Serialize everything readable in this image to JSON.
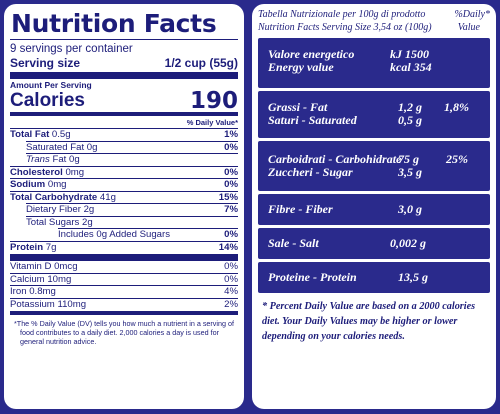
{
  "us": {
    "title": "Nutrition Facts",
    "servings": "9 servings per container",
    "serving_size_label": "Serving size",
    "serving_size_value": "1/2 cup (55g)",
    "amount_per_serving": "Amount Per Serving",
    "calories_label": "Calories",
    "calories_value": "190",
    "dv_header": "% Daily Value*",
    "rows": [
      {
        "label_bold": "Total Fat",
        "label": " 0.5g",
        "pct": "1%"
      },
      {
        "label_bold": "",
        "label": "Saturated Fat 0g",
        "pct": "0%"
      },
      {
        "label_italic": "Trans",
        "label": " Fat 0g",
        "pct": ""
      },
      {
        "label_bold": "Cholesterol",
        "label": " 0mg",
        "pct": "0%"
      },
      {
        "label_bold": "Sodium",
        "label": " 0mg",
        "pct": "0%"
      },
      {
        "label_bold": "Total Carbohydrate",
        "label": " 41g",
        "pct": "15%"
      },
      {
        "label_bold": "",
        "label": "Dietary Fiber 2g",
        "pct": "7%"
      },
      {
        "label_bold": "",
        "label": "Total Sugars 2g",
        "pct": ""
      },
      {
        "label_bold": "",
        "label": "Includes 0g Added Sugars",
        "pct": "0%"
      },
      {
        "label_bold": "Protein",
        "label": " 7g",
        "pct": "14%"
      },
      {
        "label_bold": "",
        "label": "Vitamin D 0mcg",
        "pct": "0%"
      },
      {
        "label_bold": "",
        "label": "Calcium 10mg",
        "pct": "0%"
      },
      {
        "label_bold": "",
        "label": "Iron 0.8mg",
        "pct": "4%"
      },
      {
        "label_bold": "",
        "label": "Potassium 110mg",
        "pct": "2%"
      }
    ],
    "footnote": "*The % Daily Value (DV) tells you how much a nutrient in a serving of food contributes to a daily diet. 2,000 calories a day is used for general nutrition advice."
  },
  "eu": {
    "header_left_1": "Tabella Nutrizionale per 100g di prodotto",
    "header_right_1": "%Daily*",
    "header_left_2": "Nutrition Facts Serving Size 3,54 oz (100g)",
    "header_right_2": "Value",
    "energy_label_1": "Valore energetico",
    "energy_label_2": "Energy value",
    "energy_kj": "kJ 1500",
    "energy_kcal": "kcal 354",
    "fat_label_1": "Grassi - Fat",
    "fat_label_2": "Saturi - Saturated",
    "fat_value": "1,2 g",
    "sat_value": "0,5 g",
    "fat_pct": "1,8%",
    "carb_label_1": "Carboidrati - Carbohidrate",
    "carb_label_2": "Zuccheri - Sugar",
    "carb_value": "75 g",
    "sugar_value": "3,5 g",
    "carb_pct": "25%",
    "fibre_label": "Fibre - Fiber",
    "fibre_value": "3,0 g",
    "salt_label": "Sale - Salt",
    "salt_value": "0,002 g",
    "protein_label": "Proteine - Protein",
    "protein_value": "13,5 g",
    "note": "* Percent Daily Value are based on a 2000 calories diet. Your Daily Values may be higher or lower depending on your calories needs."
  },
  "colors": {
    "background": "#2a2a8c",
    "ink": "#1d1d7a",
    "panel": "#ffffff"
  }
}
